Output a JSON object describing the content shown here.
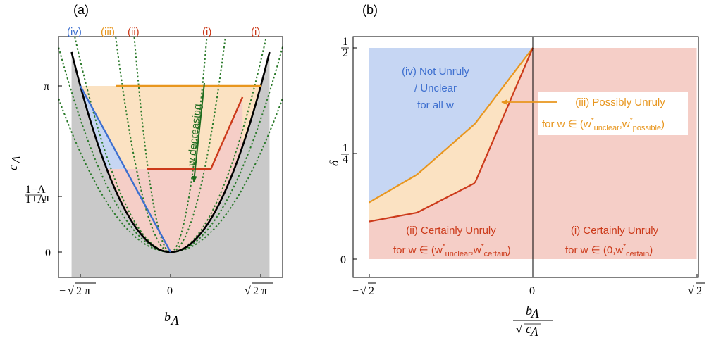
{
  "chart_data": [
    {
      "panel": "(a)",
      "type": "line",
      "xlabel": "b_Λ",
      "ylabel": "c_Λ",
      "xlim": [
        -2.75,
        2.75
      ],
      "ylim": [
        0,
        4.43
      ],
      "xticks": [
        "−√2π",
        "0",
        "√2π"
      ],
      "yticks": [
        "0",
        "(1−Λ)/(1+Λ) π",
        "π"
      ],
      "top_labels": [
        {
          "text": "(iv)",
          "color": "#3d6fcf"
        },
        {
          "text": "(iii)",
          "color": "#e8961e"
        },
        {
          "text": "(ii)",
          "color": "#cc3a1a"
        },
        {
          "text": "(i)",
          "color": "#cc3a1a"
        },
        {
          "text": "(i)",
          "color": "#cc3a1a"
        }
      ],
      "series": [
        {
          "kind": "boundary",
          "color": "#000000",
          "formula": "c = b^2/2",
          "x": [
            -2.75,
            2.75
          ]
        },
        {
          "kind": "blue-line",
          "color": "#3d6fcf",
          "x": [
            -2.5066,
            0
          ],
          "y": [
            3.1416,
            0
          ]
        },
        {
          "kind": "orange-line",
          "color": "#e8961e",
          "x": [
            -1.51,
            2.5066
          ],
          "y": [
            3.1416,
            3.1416
          ]
        },
        {
          "kind": "red-line",
          "color": "#cc3a1a",
          "x": [
            -0.65,
            1.12,
            2.0
          ],
          "y": [
            1.571,
            1.571,
            2.93
          ]
        },
        {
          "kind": "dotted",
          "color": "#2b7a2b",
          "k": 0.6
        },
        {
          "kind": "dotted",
          "color": "#2b7a2b",
          "k": 0.8
        },
        {
          "kind": "dotted",
          "color": "#2b7a2b",
          "k": 1.15
        },
        {
          "kind": "dotted",
          "color": "#2b7a2b",
          "k": 3.5
        },
        {
          "kind": "dotted",
          "color": "#2b7a2b",
          "k": 8.0
        }
      ],
      "arrow": {
        "text": "w decreasing",
        "color": "#1e6b1e"
      }
    },
    {
      "panel": "(b)",
      "type": "area",
      "xlabel": "b_Λ / √c_Λ",
      "ylabel": "δ",
      "xlim": [
        -1.45,
        1.45
      ],
      "ylim": [
        -0.03,
        0.515
      ],
      "xticks": [
        "−√2",
        "0",
        "√2"
      ],
      "yticks": [
        "0",
        "1/4",
        "1/2"
      ],
      "regions": [
        {
          "id": "iv",
          "text": [
            "(iv) Not Unruly",
            "/ Unclear",
            "for all w"
          ],
          "color": "#3d6fcf"
        },
        {
          "id": "iii",
          "text": [
            "(iii) Possibly Unruly",
            "for w ∈ (w*unclear, w*possible)"
          ],
          "color": "#e8961e"
        },
        {
          "id": "ii",
          "text": [
            "(ii) Certainly Unruly",
            "for w ∈ (w*unclear, w*certain)"
          ],
          "color": "#cc3a1a"
        },
        {
          "id": "i",
          "text": [
            "(i) Certainly Unruly",
            "for w ∈ (0, w*certain)"
          ],
          "color": "#cc3a1a"
        }
      ],
      "upper_curve": {
        "x": [
          -1.4142,
          -1.0,
          -0.5,
          0.0
        ],
        "y": [
          0.134,
          0.2,
          0.32,
          0.5
        ]
      },
      "lower_curve": {
        "x": [
          -1.4142,
          -1.0,
          -0.5,
          0.0
        ],
        "y": [
          0.089,
          0.11,
          0.18,
          0.5
        ]
      }
    }
  ],
  "labels": {
    "panel_a": "(a)",
    "panel_b": "(b)",
    "a_xlabel": "b",
    "a_xlabel_sub": "Λ",
    "a_ylabel": "c",
    "a_ylabel_sub": "Λ",
    "a_xtick_neg": "−",
    "a_xtick_pos": "",
    "a_sqrt_arg": "2 π",
    "a_xtick_zero": "0",
    "a_ytick_zero": "0",
    "a_ytick_pi": "π",
    "a_ytick_frac_num": "1−Λ",
    "a_ytick_frac_den": "1+Λ",
    "a_ytick_frac_pi": "π",
    "top_iv": "(iv)",
    "top_iii": "(iii)",
    "top_ii": "(ii)",
    "top_i1": "(i)",
    "top_i2": "(i)",
    "arrow": "w decreasing",
    "b_ylabel": "δ",
    "b_ytick_0": "0",
    "b_ytick_q_num": "1",
    "b_ytick_q_den": "4",
    "b_ytick_h_num": "1",
    "b_ytick_h_den": "2",
    "b_xtick_neg": "−",
    "b_sqrt_arg": "2",
    "b_xtick_zero": "0",
    "b_xlabel_num": "b",
    "b_xlabel_num_sub": "Λ",
    "b_xlabel_den": "c",
    "b_xlabel_den_sub": "Λ",
    "iv_1": "(iv) Not Unruly",
    "iv_2": "/ Unclear",
    "iv_3": "for all w",
    "iii_1": "(iii) Possibly Unruly",
    "iii_2a": "for w ∈ (",
    "ii_1": "(ii) Certainly Unruly",
    "ii_2a": "for w ∈ (",
    "i_1": "(i) Certainly Unruly",
    "i_2a": "for w ∈ (0,",
    "w": "w",
    "star": "*",
    "unclear": "unclear",
    "possible": "possible",
    "certain": "certain",
    "comma": ",",
    "close": ")"
  }
}
